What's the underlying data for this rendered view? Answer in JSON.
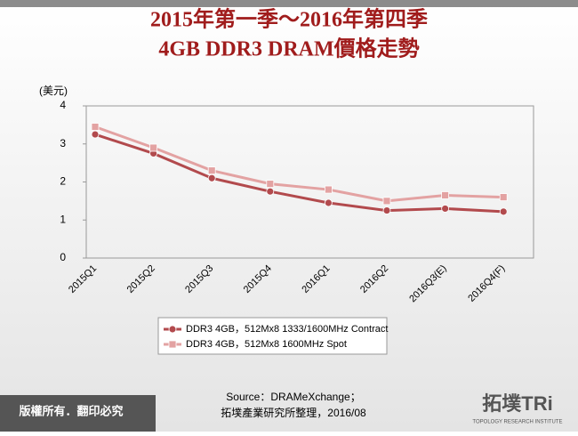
{
  "chart_data": {
    "type": "line",
    "title": "2015年第一季～2016年第四季",
    "subtitle": "4GB DDR3 DRAM價格走勢",
    "y_label": "(美元)",
    "categories": [
      "2015Q1",
      "2015Q2",
      "2015Q3",
      "2015Q4",
      "2016Q1",
      "2016Q2",
      "2016Q3(E)",
      "2016Q4(F)"
    ],
    "series": [
      {
        "name": "DDR3 4GB，512Mx8 1333/1600MHz Contract",
        "color": "#b24a4d",
        "marker": "circle",
        "values": [
          3.25,
          2.75,
          2.1,
          1.75,
          1.45,
          1.25,
          1.3,
          1.22
        ]
      },
      {
        "name": "DDR3 4GB，512Mx8 1600MHz Spot",
        "color": "#e3a2a2",
        "marker": "square",
        "values": [
          3.45,
          2.9,
          2.3,
          1.95,
          1.8,
          1.5,
          1.65,
          1.6
        ]
      }
    ],
    "ylim": [
      0,
      4
    ],
    "yticks": [
      0,
      1,
      2,
      3,
      4
    ],
    "grid": false,
    "legend": "bottom",
    "source": [
      "Source：DRAMeXchange；",
      "拓墣產業研究所整理，2016/08"
    ],
    "copyright": "版權所有．翻印必究",
    "logo": "拓墣TRi",
    "logo_sub": "TOPOLOGY RESEARCH INSTITUTE"
  }
}
